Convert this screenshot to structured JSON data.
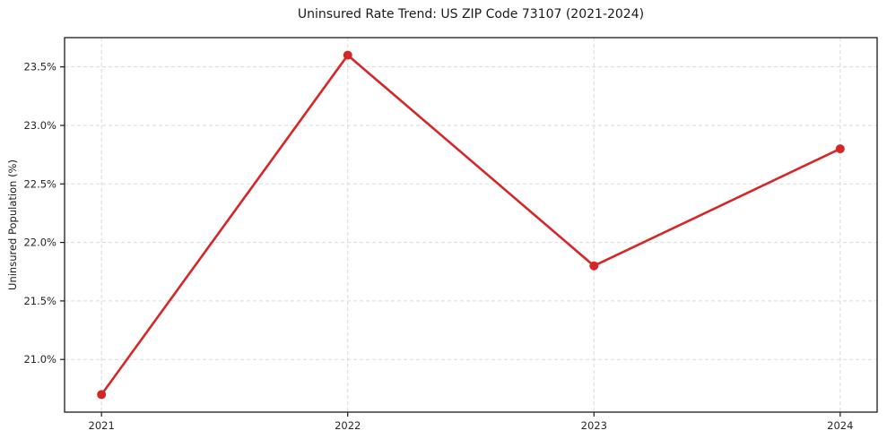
{
  "chart_data": {
    "type": "line",
    "title": "Uninsured Rate Trend: US ZIP Code 73107 (2021-2024)",
    "xlabel": "",
    "ylabel": "Uninsured Population (%)",
    "x": [
      2021,
      2022,
      2023,
      2024
    ],
    "x_tick_labels": [
      "2021",
      "2022",
      "2023",
      "2024"
    ],
    "values": [
      20.7,
      23.6,
      21.8,
      22.8
    ],
    "y_ticks": [
      21.0,
      21.5,
      22.0,
      22.5,
      23.0,
      23.5
    ],
    "y_tick_labels": [
      "21.0%",
      "21.5%",
      "22.0%",
      "22.5%",
      "23.0%",
      "23.5%"
    ],
    "xlim": [
      2020.85,
      2024.15
    ],
    "ylim": [
      20.55,
      23.75
    ],
    "grid": true,
    "legend": false,
    "line_color": "#d62728",
    "grid_color": "#d9d9d9",
    "frame_color": "#1a1a1a",
    "marker": "circle"
  }
}
